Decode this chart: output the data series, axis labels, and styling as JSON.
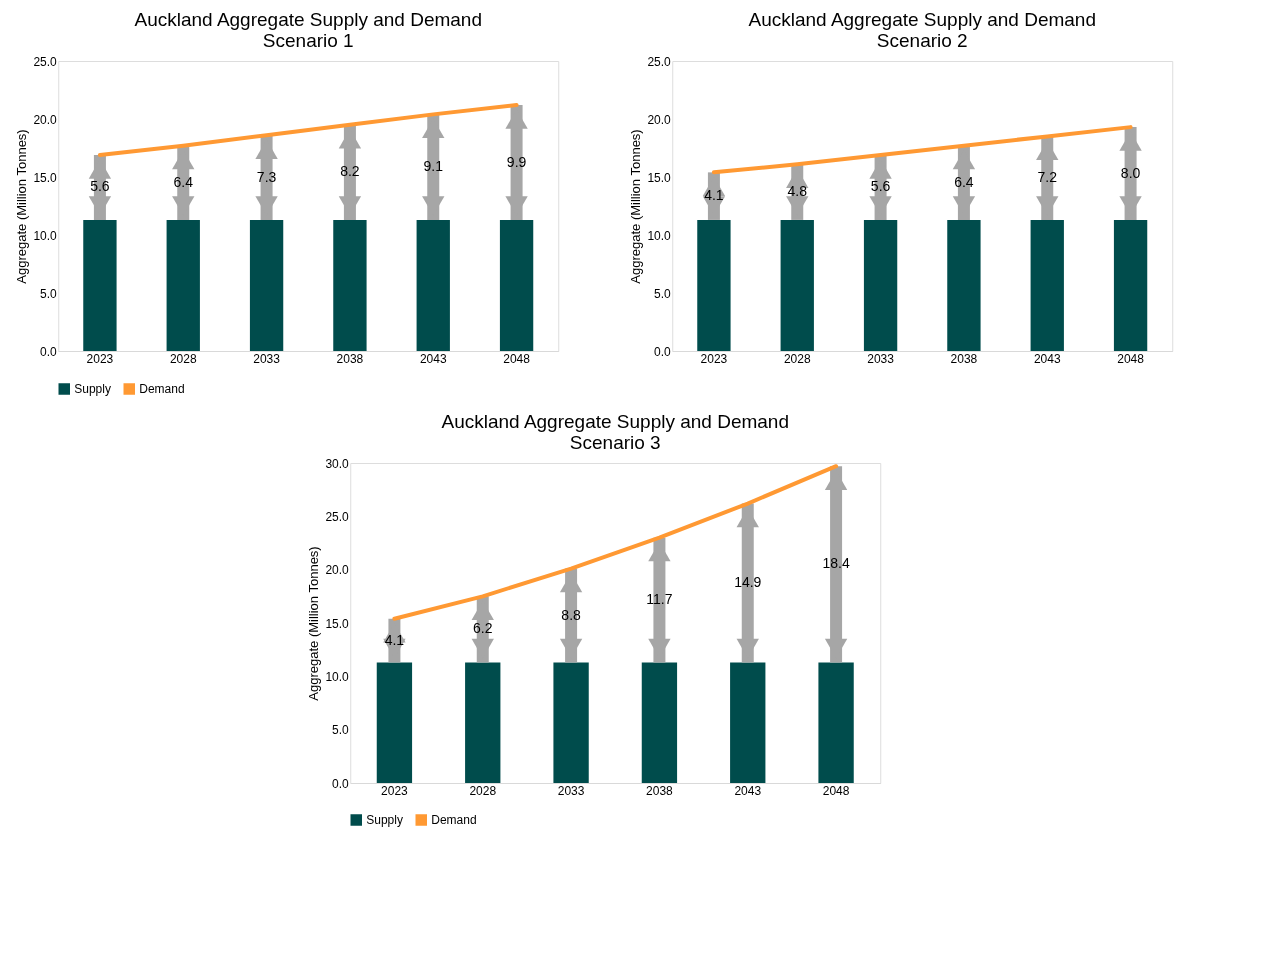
{
  "chart_data": [
    {
      "type": "bar",
      "title": "Auckland Aggregate Supply and Demand\nScenario 1",
      "ylabel": "Aggregate (Million Tonnes)",
      "categories": [
        "2023",
        "2028",
        "2033",
        "2038",
        "2043",
        "2048"
      ],
      "series": [
        {
          "name": "Supply",
          "color": "#004c4c",
          "values": [
            11.3,
            11.3,
            11.3,
            11.3,
            11.3,
            11.3
          ]
        },
        {
          "color": "#a6a6a6",
          "base": [
            11.3,
            11.3,
            11.3,
            11.3,
            11.3,
            11.3
          ],
          "values": [
            5.6,
            6.4,
            7.3,
            8.2,
            9.1,
            9.9
          ],
          "value_labels": [
            "5.6",
            "6.4",
            "7.3",
            "8.2",
            "9.1",
            "9.9"
          ]
        },
        {
          "name": "Demand",
          "type": "line",
          "color": "#ff9933",
          "values": [
            16.9,
            17.7,
            18.6,
            19.5,
            20.4,
            21.2
          ]
        }
      ],
      "ylim": [
        0,
        25
      ],
      "yticks": [
        {
          "value": 0,
          "label": "0.0"
        },
        {
          "value": 5,
          "label": "5.0"
        },
        {
          "value": 10,
          "label": "10.0"
        },
        {
          "value": 15,
          "label": "15.0"
        },
        {
          "value": 20,
          "label": "20.0"
        },
        {
          "value": 25,
          "label": "25.0"
        }
      ],
      "grid": false,
      "legend": "bottom"
    },
    {
      "type": "bar",
      "title": "Auckland Aggregate Supply and Demand\nScenario 2",
      "ylabel": "Aggregate (Million Tonnes)",
      "categories": [
        "2023",
        "2028",
        "2033",
        "2038",
        "2043",
        "2048"
      ],
      "series": [
        {
          "name": "Supply",
          "color": "#004c4c",
          "values": [
            11.3,
            11.3,
            11.3,
            11.3,
            11.3,
            11.3
          ]
        },
        {
          "color": "#a6a6a6",
          "base": [
            11.3,
            11.3,
            11.3,
            11.3,
            11.3,
            11.3
          ],
          "values": [
            4.1,
            4.8,
            5.6,
            6.4,
            7.2,
            8.0
          ],
          "value_labels": [
            "4.1",
            "4.8",
            "5.6",
            "6.4",
            "7.2",
            "8.0"
          ]
        },
        {
          "name": "Demand",
          "type": "line",
          "color": "#ff9933",
          "values": [
            15.4,
            16.1,
            16.9,
            17.7,
            18.5,
            19.3
          ]
        }
      ],
      "ylim": [
        0,
        25
      ],
      "yticks": [
        {
          "value": 0,
          "label": "0.0"
        },
        {
          "value": 5,
          "label": "5.0"
        },
        {
          "value": 10,
          "label": "10.0"
        },
        {
          "value": 15,
          "label": "15.0"
        },
        {
          "value": 20,
          "label": "20.0"
        },
        {
          "value": 25,
          "label": "25.0"
        }
      ],
      "grid": false,
      "legend": "bottom"
    },
    {
      "type": "bar",
      "title": "Auckland Aggregate Supply and Demand\nScenario 3",
      "ylabel": "Aggregate (Million Tonnes)",
      "categories": [
        "2023",
        "2028",
        "2033",
        "2038",
        "2043",
        "2048"
      ],
      "series": [
        {
          "name": "Supply",
          "color": "#004c4c",
          "values": [
            11.3,
            11.3,
            11.3,
            11.3,
            11.3,
            11.3
          ]
        },
        {
          "color": "#a6a6a6",
          "base": [
            11.3,
            11.3,
            11.3,
            11.3,
            11.3,
            11.3
          ],
          "values": [
            4.1,
            6.2,
            8.8,
            11.7,
            14.9,
            18.4
          ],
          "value_labels": [
            "4.1",
            "6.2",
            "8.8",
            "11.7",
            "14.9",
            "18.4"
          ]
        },
        {
          "name": "Demand",
          "type": "line",
          "color": "#ff9933",
          "values": [
            15.4,
            17.5,
            20.1,
            23.0,
            26.2,
            29.7
          ]
        }
      ],
      "ylim": [
        0,
        30
      ],
      "yticks": [
        {
          "value": 0,
          "label": "0.0"
        },
        {
          "value": 5,
          "label": "5.0"
        },
        {
          "value": 10,
          "label": "10.0"
        },
        {
          "value": 15,
          "label": "15.0"
        },
        {
          "value": 20,
          "label": "20.0"
        },
        {
          "value": 25,
          "label": "25.0"
        },
        {
          "value": 30,
          "label": "30.0"
        }
      ],
      "grid": false,
      "legend": "bottom"
    }
  ]
}
